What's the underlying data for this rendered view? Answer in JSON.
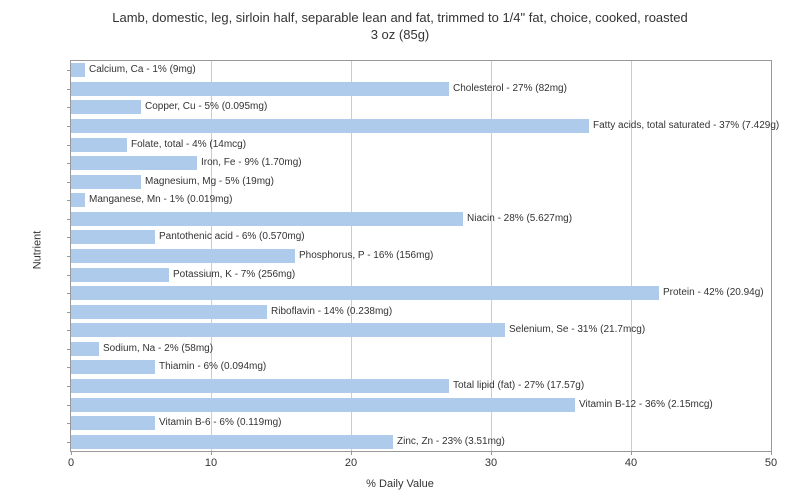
{
  "chart": {
    "type": "bar",
    "title_line1": "Lamb, domestic, leg, sirloin half, separable lean and fat, trimmed to 1/4\" fat, choice, cooked, roasted",
    "title_line2": "3 oz (85g)",
    "title_fontsize": 13,
    "title_color": "#333333",
    "xlabel": "% Daily Value",
    "ylabel": "Nutrient",
    "label_fontsize": 11,
    "xlim": [
      0,
      50
    ],
    "xtick_step": 10,
    "xticks": [
      0,
      10,
      20,
      30,
      40,
      50
    ],
    "bar_color": "#aecbeb",
    "background_color": "#ffffff",
    "grid_color": "#cccccc",
    "border_color": "#999999",
    "bar_label_fontsize": 10,
    "nutrients": [
      {
        "label": "Calcium, Ca - 1% (9mg)",
        "value": 1
      },
      {
        "label": "Cholesterol - 27% (82mg)",
        "value": 27
      },
      {
        "label": "Copper, Cu - 5% (0.095mg)",
        "value": 5
      },
      {
        "label": "Fatty acids, total saturated - 37% (7.429g)",
        "value": 37
      },
      {
        "label": "Folate, total - 4% (14mcg)",
        "value": 4
      },
      {
        "label": "Iron, Fe - 9% (1.70mg)",
        "value": 9
      },
      {
        "label": "Magnesium, Mg - 5% (19mg)",
        "value": 5
      },
      {
        "label": "Manganese, Mn - 1% (0.019mg)",
        "value": 1
      },
      {
        "label": "Niacin - 28% (5.627mg)",
        "value": 28
      },
      {
        "label": "Pantothenic acid - 6% (0.570mg)",
        "value": 6
      },
      {
        "label": "Phosphorus, P - 16% (156mg)",
        "value": 16
      },
      {
        "label": "Potassium, K - 7% (256mg)",
        "value": 7
      },
      {
        "label": "Protein - 42% (20.94g)",
        "value": 42
      },
      {
        "label": "Riboflavin - 14% (0.238mg)",
        "value": 14
      },
      {
        "label": "Selenium, Se - 31% (21.7mcg)",
        "value": 31
      },
      {
        "label": "Sodium, Na - 2% (58mg)",
        "value": 2
      },
      {
        "label": "Thiamin - 6% (0.094mg)",
        "value": 6
      },
      {
        "label": "Total lipid (fat) - 27% (17.57g)",
        "value": 27
      },
      {
        "label": "Vitamin B-12 - 36% (2.15mcg)",
        "value": 36
      },
      {
        "label": "Vitamin B-6 - 6% (0.119mg)",
        "value": 6
      },
      {
        "label": "Zinc, Zn - 23% (3.51mg)",
        "value": 23
      }
    ]
  }
}
